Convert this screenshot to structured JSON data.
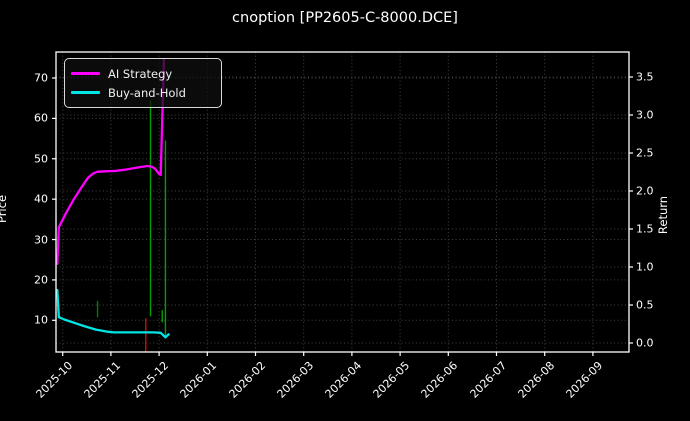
{
  "title": "cnoption [PP2605-C-8000.DCE]",
  "colors": {
    "background": "#000000",
    "foreground": "#ffffff",
    "grid": "#444444",
    "ai_strategy": "#ff00ff",
    "buy_and_hold": "#00e5e5",
    "buy_marker": "#00a000",
    "sell_marker": "#e00000"
  },
  "chart_data": {
    "type": "line",
    "title": "cnoption [PP2605-C-8000.DCE]",
    "ylabel_left": "Price",
    "ylabel_right": "Return",
    "x_tick_labels": [
      "2025-10",
      "2025-11",
      "2025-12",
      "2026-01",
      "2026-02",
      "2026-03",
      "2026-04",
      "2026-05",
      "2026-06",
      "2026-07",
      "2026-08",
      "2026-09"
    ],
    "y_left_ticks": [
      10,
      20,
      30,
      40,
      50,
      60,
      70
    ],
    "y_right_ticks": [
      0.0,
      0.5,
      1.0,
      1.5,
      2.0,
      2.5,
      3.0,
      3.5
    ],
    "ylim_price": [
      2.0,
      76.5
    ],
    "ylim_return": [
      -0.12,
      3.83
    ],
    "grid": true,
    "legend_position": "upper-left",
    "series": [
      {
        "name": "AI Strategy",
        "color": "#ff00ff",
        "axis": "price",
        "points": [
          [
            "2025-09-28",
            24.0
          ],
          [
            "2025-09-29",
            33.0
          ],
          [
            "2025-10-03",
            36.5
          ],
          [
            "2025-10-08",
            40.0
          ],
          [
            "2025-10-13",
            43.0
          ],
          [
            "2025-10-17",
            45.3
          ],
          [
            "2025-10-20",
            46.3
          ],
          [
            "2025-10-23",
            46.8
          ],
          [
            "2025-10-28",
            46.9
          ],
          [
            "2025-11-04",
            47.0
          ],
          [
            "2025-11-10",
            47.3
          ],
          [
            "2025-11-17",
            47.8
          ],
          [
            "2025-11-24",
            48.2
          ],
          [
            "2025-11-27",
            48.0
          ],
          [
            "2025-11-29",
            47.5
          ],
          [
            "2025-12-01",
            46.2
          ],
          [
            "2025-12-02",
            46.0
          ],
          [
            "2025-12-04",
            74.5
          ]
        ]
      },
      {
        "name": "Buy-and-Hold",
        "color": "#00e5e5",
        "axis": "price",
        "points": [
          [
            "2025-09-28",
            17.5
          ],
          [
            "2025-09-29",
            10.8
          ],
          [
            "2025-10-02",
            10.2
          ],
          [
            "2025-10-08",
            9.4
          ],
          [
            "2025-10-15",
            8.5
          ],
          [
            "2025-10-22",
            7.7
          ],
          [
            "2025-10-29",
            7.2
          ],
          [
            "2025-11-03",
            7.0
          ],
          [
            "2025-11-20",
            7.0
          ],
          [
            "2025-11-28",
            7.0
          ],
          [
            "2025-12-02",
            6.9
          ],
          [
            "2025-12-05",
            5.8
          ],
          [
            "2025-12-07",
            6.5
          ]
        ]
      }
    ],
    "event_lines": [
      {
        "date": "2025-10-23",
        "from": 10.7,
        "to": 14.8,
        "color": "#007d00",
        "kind": "buy-marker"
      },
      {
        "date": "2025-11-23",
        "from": 2.0,
        "to": 10.5,
        "color": "#e00000",
        "kind": "sell-marker"
      },
      {
        "date": "2025-11-26",
        "from": 11.0,
        "to": 64.5,
        "color": "#00a000",
        "kind": "buy-marker"
      },
      {
        "date": "2025-12-03",
        "from": 9.5,
        "to": 12.5,
        "color": "#00a000",
        "kind": "buy-marker"
      },
      {
        "date": "2025-12-05",
        "from": 5.5,
        "to": 54.5,
        "color": "#00a000",
        "kind": "buy-marker"
      }
    ]
  },
  "legend": {
    "items": [
      {
        "label": "AI Strategy",
        "color": "#ff00ff"
      },
      {
        "label": "Buy-and-Hold",
        "color": "#00e5e5"
      }
    ]
  }
}
